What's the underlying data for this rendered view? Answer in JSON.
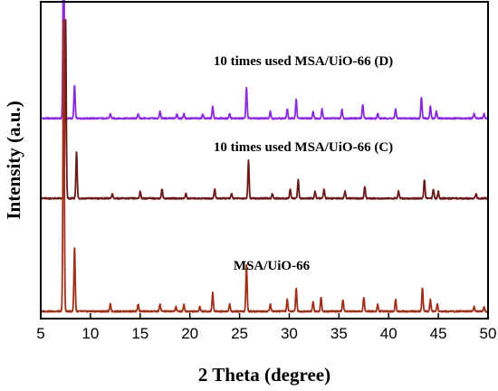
{
  "chart_data": {
    "type": "line",
    "xlabel": "2 Theta (degree)",
    "ylabel": "Intensity (a.u.)",
    "xlim": [
      5,
      50
    ],
    "x_ticks": [
      5,
      10,
      15,
      20,
      25,
      30,
      35,
      40,
      45,
      50
    ],
    "y_ticks_shown": false,
    "grid": false,
    "legend": "none",
    "series": [
      {
        "name": "10 times used MSA/UiO-66 (D)",
        "color": "#8a2be2",
        "baseline": 0.82,
        "peaks": [
          [
            7.3,
            0.82
          ],
          [
            8.4,
            0.14
          ],
          [
            12.0,
            0.02
          ],
          [
            14.8,
            0.02
          ],
          [
            17.0,
            0.03
          ],
          [
            18.7,
            0.02
          ],
          [
            19.4,
            0.02
          ],
          [
            21.3,
            0.02
          ],
          [
            22.3,
            0.05
          ],
          [
            24.0,
            0.02
          ],
          [
            25.7,
            0.13
          ],
          [
            28.1,
            0.03
          ],
          [
            29.8,
            0.04
          ],
          [
            30.7,
            0.08
          ],
          [
            32.4,
            0.03
          ],
          [
            33.3,
            0.04
          ],
          [
            35.3,
            0.04
          ],
          [
            37.4,
            0.06
          ],
          [
            38.9,
            0.02
          ],
          [
            40.7,
            0.04
          ],
          [
            43.3,
            0.09
          ],
          [
            44.2,
            0.05
          ],
          [
            44.8,
            0.03
          ],
          [
            48.6,
            0.02
          ],
          [
            49.6,
            0.02
          ]
        ]
      },
      {
        "name": "10 times used MSA/UiO-66 (C)",
        "color": "#6b1a1a",
        "baseline": 0.48,
        "peaks": [
          [
            7.5,
            0.77
          ],
          [
            8.6,
            0.2
          ],
          [
            12.2,
            0.02
          ],
          [
            15.0,
            0.03
          ],
          [
            17.2,
            0.04
          ],
          [
            19.6,
            0.02
          ],
          [
            22.5,
            0.04
          ],
          [
            24.2,
            0.02
          ],
          [
            25.9,
            0.16
          ],
          [
            28.3,
            0.02
          ],
          [
            30.1,
            0.04
          ],
          [
            30.9,
            0.08
          ],
          [
            32.6,
            0.03
          ],
          [
            33.5,
            0.04
          ],
          [
            35.6,
            0.03
          ],
          [
            37.6,
            0.05
          ],
          [
            41.0,
            0.03
          ],
          [
            43.6,
            0.08
          ],
          [
            44.5,
            0.04
          ],
          [
            45.0,
            0.03
          ],
          [
            48.8,
            0.02
          ]
        ]
      },
      {
        "name": "MSA/UiO-66",
        "color": "#a0301a",
        "baseline": 0.0,
        "peaks": [
          [
            7.3,
            1.24
          ],
          [
            8.4,
            0.27
          ],
          [
            12.0,
            0.03
          ],
          [
            14.8,
            0.03
          ],
          [
            17.0,
            0.03
          ],
          [
            18.6,
            0.02
          ],
          [
            19.4,
            0.03
          ],
          [
            21.0,
            0.02
          ],
          [
            22.3,
            0.08
          ],
          [
            24.0,
            0.03
          ],
          [
            25.7,
            0.2
          ],
          [
            28.1,
            0.03
          ],
          [
            29.8,
            0.05
          ],
          [
            30.7,
            0.1
          ],
          [
            32.4,
            0.04
          ],
          [
            33.2,
            0.06
          ],
          [
            35.4,
            0.05
          ],
          [
            37.5,
            0.06
          ],
          [
            38.9,
            0.03
          ],
          [
            40.7,
            0.05
          ],
          [
            43.4,
            0.1
          ],
          [
            44.2,
            0.05
          ],
          [
            44.9,
            0.03
          ],
          [
            48.6,
            0.02
          ],
          [
            49.6,
            0.02
          ]
        ]
      }
    ]
  }
}
